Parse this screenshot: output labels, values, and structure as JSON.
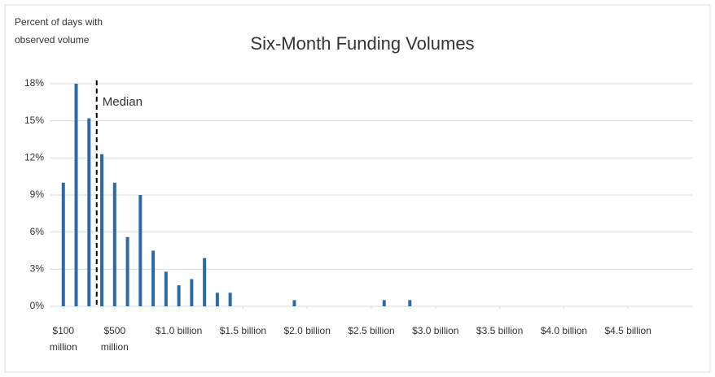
{
  "chart_data": {
    "type": "bar",
    "title": "Six-Month Funding Volumes",
    "ylabel": "Percent of days with observed volume",
    "x": [
      100,
      200,
      300,
      400,
      500,
      600,
      700,
      800,
      900,
      1000,
      1100,
      1200,
      1300,
      1400,
      1900,
      2600,
      2800
    ],
    "values": [
      10,
      18,
      15.2,
      12.3,
      10,
      5.6,
      9,
      4.5,
      2.8,
      1.7,
      2.2,
      3.9,
      1.1,
      1.1,
      0.5,
      0.5,
      0.5
    ],
    "color": "#2f6aa6",
    "xlim": [
      0,
      5000
    ],
    "xticks": [
      {
        "value": 100,
        "label": "$100 million"
      },
      {
        "value": 500,
        "label": "$500 million"
      },
      {
        "value": 1000,
        "label": "$1.0 billion"
      },
      {
        "value": 1500,
        "label": "$1.5 billion"
      },
      {
        "value": 2000,
        "label": "$2.0 billion"
      },
      {
        "value": 2500,
        "label": "$2.5 billion"
      },
      {
        "value": 3000,
        "label": "$3.0 billion"
      },
      {
        "value": 3500,
        "label": "$3.5 billion"
      },
      {
        "value": 4000,
        "label": "$4.0 billion"
      },
      {
        "value": 4500,
        "label": "$4.5 billion"
      }
    ],
    "ylim": [
      0,
      18
    ],
    "yticks": [
      {
        "value": 0,
        "label": "0%"
      },
      {
        "value": 3,
        "label": "3%"
      },
      {
        "value": 6,
        "label": "6%"
      },
      {
        "value": 9,
        "label": "9%"
      },
      {
        "value": 12,
        "label": "12%"
      },
      {
        "value": 15,
        "label": "15%"
      },
      {
        "value": 18,
        "label": "18%"
      }
    ],
    "grid": true,
    "annotation": {
      "text": "Median",
      "x": 360
    }
  }
}
